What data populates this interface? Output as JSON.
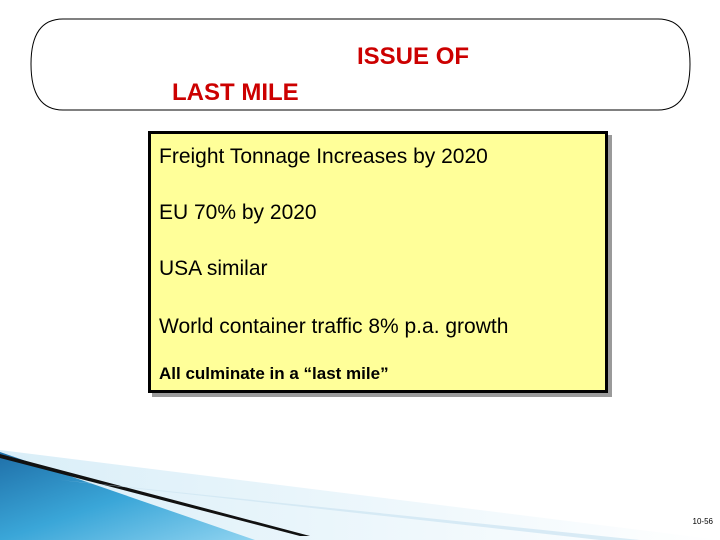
{
  "slide": {
    "title_line_1": "ISSUE OF",
    "title_line_2": "LAST MILE",
    "content": {
      "line_1": "Freight Tonnage Increases by 2020",
      "line_2": "EU 70% by 2020",
      "line_3": "USA similar",
      "line_4": "World container traffic 8% p.a. growth",
      "line_5": "All culminate in a “last mile”"
    },
    "page_number": "10-56"
  },
  "colors": {
    "title": "#cc0000",
    "box_fill": "#ffff99",
    "box_border": "#000000",
    "corner_accent": "#2a8fc6"
  }
}
